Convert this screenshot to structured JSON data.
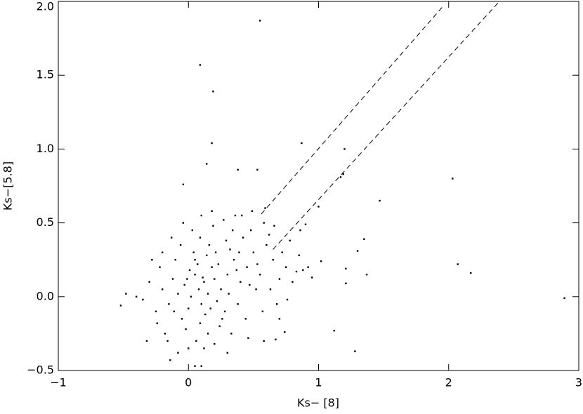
{
  "chart_data": {
    "type": "scatter",
    "x_label": "Ks− [8]",
    "y_label": "Ks−[5.8]",
    "xlim": [
      -1,
      3
    ],
    "ylim": [
      -0.5,
      2.0
    ],
    "xticks": [
      {
        "value": -1,
        "label": "−1"
      },
      0,
      1,
      2,
      3
    ],
    "yticks": [
      {
        "value": -0.5,
        "label": "−0.5"
      },
      {
        "value": 0,
        "label": "0.0"
      },
      0.5,
      {
        "value": 1,
        "label": "1.0"
      },
      1.5,
      {
        "value": 2,
        "label": "2.0"
      }
    ],
    "series": [
      {
        "color": "#000000",
        "x": [
          0.08,
          0.12,
          0.02,
          0.15,
          0.05,
          -0.03,
          0.2,
          0.1,
          0.0,
          0.18,
          0.25,
          -0.08,
          0.07,
          0.3,
          0.13,
          -0.05,
          0.22,
          0.35,
          0.04,
          -0.12,
          0.28,
          0.4,
          -0.15,
          0.16,
          0.32,
          -0.02,
          0.45,
          0.09,
          -0.2,
          0.24,
          0.5,
          0.38,
          -0.1,
          0.06,
          0.42,
          -0.25,
          0.55,
          0.19,
          0.6,
          -0.18,
          0.33,
          0.48,
          -0.3,
          0.12,
          0.27,
          0.65,
          -0.22,
          0.52,
          0.03,
          0.7,
          -0.35,
          0.44,
          0.36,
          0.58,
          -0.08,
          0.14,
          0.21,
          0.01,
          -0.06,
          0.29,
          0.11,
          0.17,
          0.23,
          -0.01,
          0.09,
          0.31,
          0.37,
          -0.11,
          0.26,
          0.05,
          0.62,
          0.75,
          0.8,
          0.68,
          0.72,
          -0.4,
          -0.28,
          -0.16,
          0.46,
          0.15,
          0.57,
          0.78,
          0.88,
          0.66,
          0.1,
          -0.04,
          0.34,
          0.41,
          0.0,
          -0.24,
          0.53,
          0.47,
          0.39,
          0.2,
          -0.13,
          0.85,
          0.76,
          0.63,
          0.18,
          -0.32,
          0.3,
          0.92,
          0.95,
          0.7,
          0.74,
          -0.2,
          0.59,
          0.49,
          0.55,
          0.09,
          0.19,
          0.18,
          0.14,
          0.38,
          0.53,
          -0.04,
          0.87,
          1.2,
          1.19,
          1.17,
          2.03,
          1.47,
          1.0,
          1.35,
          1.3,
          1.37,
          1.02,
          1.21,
          1.21,
          2.07,
          2.17,
          2.89,
          1.12,
          1.28,
          0.9,
          0.86,
          0.83,
          0.67,
          0.58,
          -0.52,
          -0.48,
          0.05,
          -0.14,
          0.1
        ],
        "y": [
          0.05,
          0.1,
          0.0,
          0.02,
          0.15,
          0.08,
          0.12,
          -0.05,
          -0.08,
          0.2,
          0.05,
          0.02,
          0.22,
          0.15,
          -0.12,
          -0.15,
          -0.03,
          0.25,
          0.3,
          0.12,
          -0.1,
          0.1,
          -0.05,
          0.35,
          0.32,
          -0.22,
          0.2,
          0.4,
          0.05,
          -0.2,
          0.3,
          -0.05,
          0.25,
          -0.3,
          0.4,
          -0.1,
          0.15,
          0.48,
          0.35,
          -0.25,
          -0.25,
          0.45,
          0.1,
          -0.35,
          0.52,
          0.25,
          0.2,
          0.05,
          0.45,
          0.12,
          -0.02,
          -0.15,
          0.55,
          0.5,
          -0.38,
          0.28,
          0.3,
          0.18,
          0.35,
          0.38,
          0.13,
          -0.08,
          0.22,
          0.12,
          -0.18,
          0.02,
          0.18,
          -0.1,
          -0.15,
          0.25,
          0.42,
          0.2,
          0.1,
          -0.05,
          0.3,
          0.0,
          0.25,
          -0.3,
          -0.28,
          -0.25,
          -0.1,
          0.38,
          0.18,
          0.48,
          0.55,
          0.5,
          0.45,
          0.55,
          -0.35,
          -0.18,
          0.22,
          0.08,
          0.3,
          -0.32,
          0.4,
          0.28,
          -0.02,
          0.05,
          0.58,
          -0.3,
          -0.38,
          0.2,
          0.13,
          -0.15,
          -0.24,
          0.3,
          0.6,
          0.58,
          1.87,
          1.57,
          1.39,
          1.04,
          0.9,
          0.86,
          0.86,
          0.76,
          1.04,
          1.0,
          0.83,
          0.81,
          0.8,
          0.65,
          0.61,
          0.39,
          0.31,
          0.15,
          0.24,
          0.19,
          0.09,
          0.22,
          0.16,
          -0.01,
          -0.23,
          -0.37,
          0.49,
          0.45,
          0.17,
          -0.29,
          -0.3,
          -0.06,
          0.02,
          -0.47,
          -0.43,
          -0.47
        ]
      }
    ],
    "lines": [
      {
        "x": [
          0.56,
          1.95
        ],
        "y": [
          0.56,
          1.96
        ]
      },
      {
        "x": [
          0.65,
          2.39
        ],
        "y": [
          0.32,
          2.0
        ]
      }
    ]
  }
}
